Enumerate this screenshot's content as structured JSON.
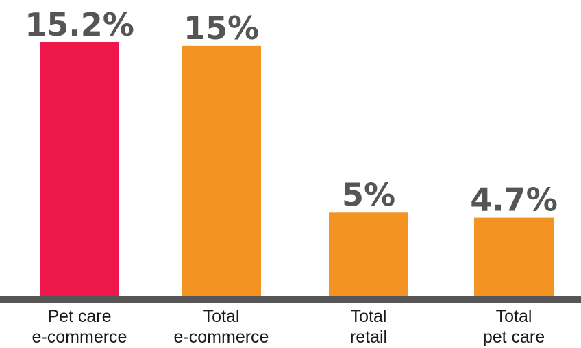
{
  "chart_data": {
    "type": "bar",
    "categories": [
      [
        "Pet care",
        "e-commerce"
      ],
      [
        "Total",
        "e-commerce"
      ],
      [
        "Total",
        "retail"
      ],
      [
        "Total",
        "pet care"
      ]
    ],
    "values": [
      15.2,
      15,
      5,
      4.7
    ],
    "value_labels": [
      "15.2%",
      "15%",
      "5%",
      "4.7%"
    ],
    "colors": [
      "#ee1749",
      "#f39321",
      "#f39321",
      "#f39321"
    ],
    "axis_color": "#555555",
    "title": "",
    "xlabel": "",
    "ylabel": "",
    "ylim": [
      0,
      15.2
    ],
    "grid": false,
    "legend": "none"
  }
}
